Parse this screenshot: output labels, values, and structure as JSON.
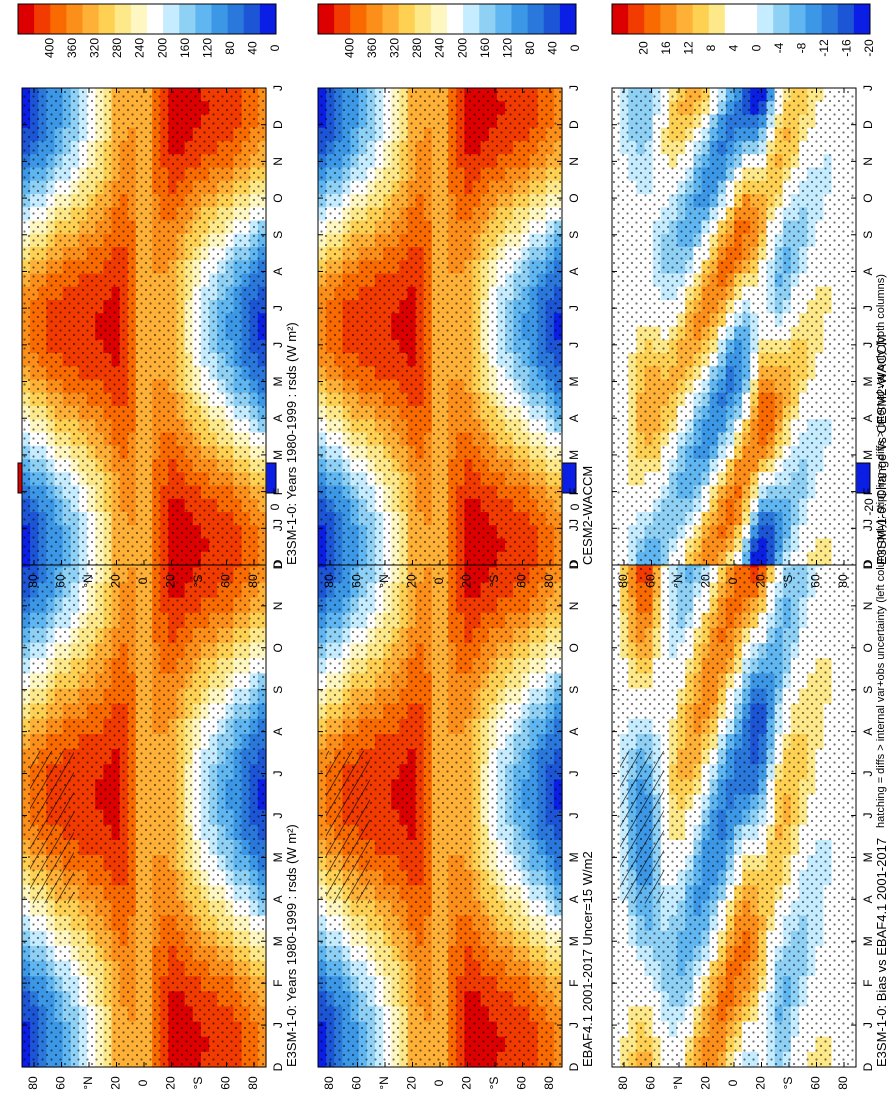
{
  "footnote": "hatching = diffs > internal var+obs uncertainty (left column only); stippling = diffs > internal var only (both columns)",
  "colors": {
    "abs": [
      "#dc0000",
      "#f23b00",
      "#f96a00",
      "#fc8f1a",
      "#feb136",
      "#fed153",
      "#fde98a",
      "#fff7c2",
      "#ffffff",
      "#c6ecff",
      "#8fd0f5",
      "#5fb6f0",
      "#3c98e6",
      "#2a78dc",
      "#1c55d6",
      "#0a1ee6"
    ],
    "diff": [
      "#dc0000",
      "#f23b00",
      "#f96a00",
      "#fc8f1a",
      "#feb136",
      "#fed153",
      "#fde98a",
      "#ffffff",
      "#ffffff",
      "#c6ecff",
      "#8fd0f5",
      "#5fb6f0",
      "#3c98e6",
      "#2a78dc",
      "#1c55d6",
      "#0a1ee6"
    ]
  },
  "chart_data": [
    {
      "type": "heatmap",
      "title": "E3SM-1-0: Years 1980-1999 : rsds (W m²)",
      "x_ticks": [
        "D",
        "J",
        "F",
        "M",
        "A",
        "M",
        "J",
        "J",
        "A",
        "S",
        "O",
        "N",
        "D",
        "J"
      ],
      "y_ticks": [
        "80",
        "60",
        "°N",
        "20",
        "0",
        "20",
        "°S",
        "60",
        "80"
      ],
      "colorbar_ticks": [
        "400",
        "360",
        "320",
        "280",
        "240",
        "200",
        "160",
        "120",
        "80",
        "40",
        "0"
      ],
      "scale": "abs",
      "hatching": true
    },
    {
      "type": "heatmap",
      "title": "E3SM-1-0: Years 1980-1999 : rsds (W m²)",
      "x_ticks": [
        "D",
        "J",
        "F",
        "M",
        "A",
        "M",
        "J",
        "J",
        "A",
        "S",
        "O",
        "N",
        "D",
        "J"
      ],
      "y_ticks": [
        "80",
        "60",
        "°N",
        "20",
        "0",
        "20",
        "°S",
        "60",
        "80"
      ],
      "colorbar_ticks": [
        "400",
        "360",
        "320",
        "280",
        "240",
        "200",
        "160",
        "120",
        "80",
        "40",
        "0"
      ],
      "scale": "abs",
      "hatching": false
    },
    {
      "type": "heatmap",
      "title": "EBAF4.1 2001-2017 Uncer=15 W/m2",
      "x_ticks": [
        "D",
        "J",
        "F",
        "M",
        "A",
        "M",
        "J",
        "J",
        "A",
        "S",
        "O",
        "N",
        "D",
        "J"
      ],
      "y_ticks": [
        "80",
        "60",
        "°N",
        "20",
        "0",
        "20",
        "°S",
        "60",
        "80"
      ],
      "colorbar_ticks": [
        "400",
        "360",
        "320",
        "280",
        "240",
        "200",
        "160",
        "120",
        "80",
        "40",
        "0"
      ],
      "scale": "abs",
      "hatching": true
    },
    {
      "type": "heatmap",
      "title": "CESM2-WACCM",
      "x_ticks": [
        "D",
        "J",
        "F",
        "M",
        "A",
        "M",
        "J",
        "J",
        "A",
        "S",
        "O",
        "N",
        "D",
        "J"
      ],
      "y_ticks": [
        "80",
        "60",
        "°N",
        "20",
        "0",
        "20",
        "°S",
        "60",
        "80"
      ],
      "colorbar_ticks": [
        "400",
        "360",
        "320",
        "280",
        "240",
        "200",
        "160",
        "120",
        "80",
        "40",
        "0"
      ],
      "scale": "abs",
      "hatching": false
    },
    {
      "type": "heatmap",
      "title": "E3SM-1-0: Bias vs EBAF4.1 2001-2017",
      "x_ticks": [
        "D",
        "J",
        "F",
        "M",
        "A",
        "M",
        "J",
        "J",
        "A",
        "S",
        "O",
        "N",
        "D",
        "J"
      ],
      "y_ticks": [
        "80",
        "60",
        "°N",
        "20",
        "0",
        "20",
        "°S",
        "60",
        "80"
      ],
      "colorbar_ticks": [
        "20",
        "16",
        "12",
        "8",
        "4",
        "0",
        "-4",
        "-8",
        "-12",
        "-16",
        "-20"
      ],
      "scale": "diff",
      "hatching": true
    },
    {
      "type": "heatmap",
      "title": "E3SM-1-0: Change vs CESM2-WACCM",
      "x_ticks": [
        "D",
        "J",
        "F",
        "M",
        "A",
        "M",
        "J",
        "J",
        "A",
        "S",
        "O",
        "N",
        "D",
        "J"
      ],
      "y_ticks": [
        "80",
        "60",
        "°N",
        "20",
        "0",
        "20",
        "°S",
        "60",
        "80"
      ],
      "colorbar_ticks": [
        "20",
        "16",
        "12",
        "8",
        "4",
        "0",
        "-4",
        "-8",
        "-12",
        "-16",
        "-20"
      ],
      "scale": "diff",
      "hatching": false
    }
  ]
}
